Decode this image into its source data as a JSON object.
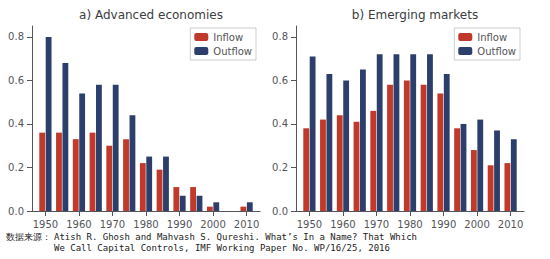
{
  "chart_data": [
    {
      "type": "bar",
      "title": "a) Advanced economies",
      "x": [
        1950,
        1955,
        1960,
        1965,
        1970,
        1975,
        1980,
        1985,
        1990,
        1995,
        2000,
        2010
      ],
      "series": [
        {
          "name": "Inflow",
          "color": "#C0392B",
          "values": [
            0.36,
            0.36,
            0.33,
            0.36,
            0.3,
            0.33,
            0.22,
            0.19,
            0.11,
            0.11,
            0.02,
            0.02
          ]
        },
        {
          "name": "Outflow",
          "color": "#2C3E6B",
          "values": [
            0.8,
            0.68,
            0.54,
            0.58,
            0.58,
            0.44,
            0.25,
            0.25,
            0.07,
            0.07,
            0.04,
            0.04
          ]
        }
      ],
      "xlim": [
        1946,
        2014
      ],
      "xticks": [
        1950,
        1960,
        1970,
        1980,
        1990,
        2000,
        2010
      ],
      "ylim": [
        0,
        0.85
      ],
      "yticks": [
        {
          "value": 0,
          "label": "0.0"
        },
        0.2,
        0.4,
        0.6,
        0.8
      ],
      "grid": false,
      "legend": "upper right",
      "annotations": [
        "数据来源：",
        "Atish R. Ghosh and Mahvash S. Qureshi. What’s In a Name? That Which\nWe Call Capital Controls, IMF Working Paper No. WP/16/25, 2016"
      ]
    },
    {
      "type": "bar",
      "title": "b) Emerging markets",
      "x": [
        1950,
        1955,
        1960,
        1965,
        1970,
        1975,
        1980,
        1985,
        1990,
        1995,
        2000,
        2005,
        2010
      ],
      "series": [
        {
          "name": "Inflow",
          "color": "#C0392B",
          "values": [
            0.38,
            0.42,
            0.44,
            0.41,
            0.46,
            0.58,
            0.6,
            0.58,
            0.54,
            0.38,
            0.28,
            0.21,
            0.22
          ]
        },
        {
          "name": "Outflow",
          "color": "#2C3E6B",
          "values": [
            0.71,
            0.63,
            0.6,
            0.65,
            0.72,
            0.72,
            0.72,
            0.72,
            0.63,
            0.4,
            0.42,
            0.37,
            0.33
          ]
        }
      ],
      "xlim": [
        1946,
        2014
      ],
      "xticks": [
        1950,
        1960,
        1970,
        1980,
        1990,
        2000,
        2010
      ],
      "ylim": [
        0,
        0.85
      ],
      "yticks": [
        {
          "value": 0,
          "label": "0.0"
        },
        0.2,
        0.4,
        0.6,
        0.8
      ],
      "grid": false,
      "legend": "upper right"
    }
  ]
}
